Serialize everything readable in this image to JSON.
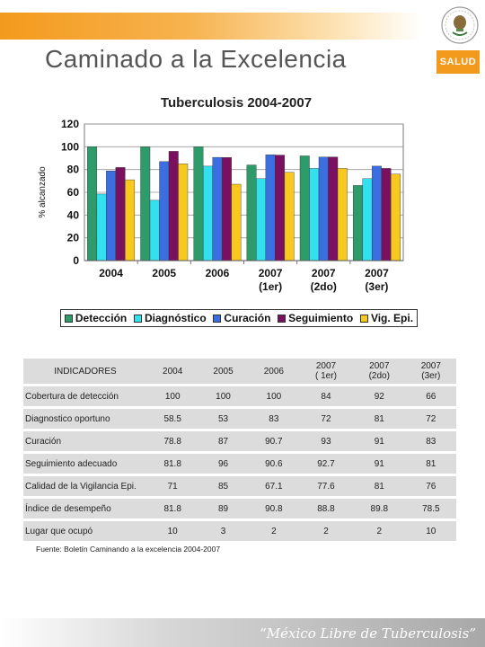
{
  "header": {
    "title": "Caminado a la Excelencia",
    "badge": "SALUD"
  },
  "chart_data": {
    "type": "bar",
    "title": "Tuberculosis 2004-2007",
    "ylabel": "% alcanzado",
    "xlabel": "",
    "ylim": [
      0,
      120
    ],
    "yticks": [
      0,
      20,
      40,
      60,
      80,
      100,
      120
    ],
    "grid": true,
    "legend_position": "bottom",
    "categories": [
      [
        "2004"
      ],
      [
        "2005"
      ],
      [
        "2006"
      ],
      [
        "2007",
        "(1er)"
      ],
      [
        "2007",
        "(2do)"
      ],
      [
        "2007",
        "(3er)"
      ]
    ],
    "series": [
      {
        "name": "Detección",
        "color": "#2e9b6a",
        "values": [
          100,
          100,
          100,
          84,
          92,
          66
        ]
      },
      {
        "name": "Diagnóstico",
        "color": "#33e0f0",
        "values": [
          58.5,
          53,
          83,
          72,
          81,
          72
        ]
      },
      {
        "name": "Curación",
        "color": "#3b6ee0",
        "values": [
          78.8,
          87,
          90.7,
          93,
          91,
          83
        ]
      },
      {
        "name": "Seguimiento",
        "color": "#7a1060",
        "values": [
          81.8,
          96,
          90.6,
          92.7,
          91,
          81
        ]
      },
      {
        "name": "Vig. Epi.",
        "color": "#f7c81e",
        "values": [
          71,
          85,
          67.1,
          77.6,
          81,
          76
        ]
      }
    ]
  },
  "table": {
    "header": [
      "INDICADORES",
      "2004",
      "2005",
      "2006",
      "2007\n( 1er)",
      "2007\n(2do)",
      "2007\n(3er)"
    ],
    "rows": [
      [
        "Cobertura de detección",
        "100",
        "100",
        "100",
        "84",
        "92",
        "66"
      ],
      [
        "Diagnostico oportuno",
        "58.5",
        "53",
        "83",
        "72",
        "81",
        "72"
      ],
      [
        "Curación",
        "78.8",
        "87",
        "90.7",
        "93",
        "91",
        "83"
      ],
      [
        "Seguimiento adecuado",
        "81.8",
        "96",
        "90.6",
        "92.7",
        "91",
        "81"
      ],
      [
        "Calidad de la Vigilancia Epi.",
        "71",
        "85",
        "67.1",
        "77.6",
        "81",
        "76"
      ],
      [
        "Índice de desempeño",
        "81.8",
        "89",
        "90.8",
        "88.8",
        "89.8",
        "78.5"
      ],
      [
        "Lugar que ocupó",
        "10",
        "3",
        "2",
        "2",
        "2",
        "10"
      ]
    ]
  },
  "note": "Fuente: Boletín Caminando a la excelencia 2004-2007",
  "footer": {
    "slogan": "“México Libre de Tuberculosis”"
  }
}
